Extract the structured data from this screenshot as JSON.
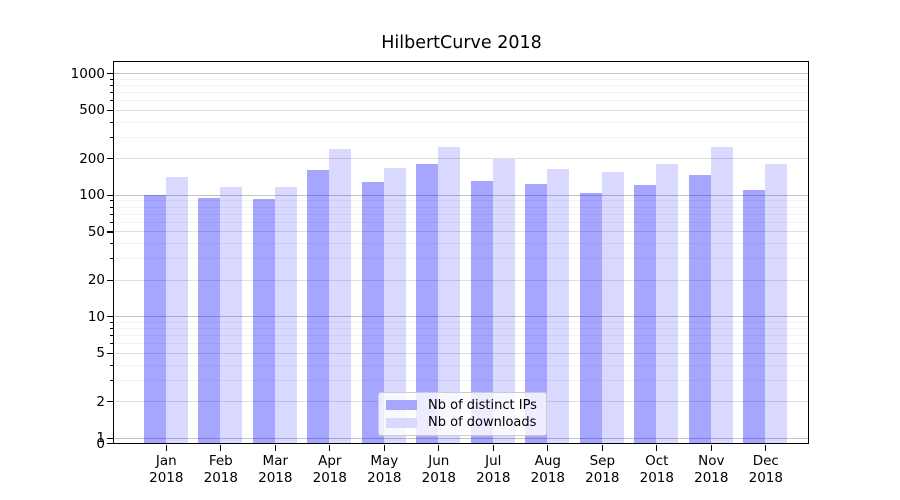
{
  "chart_data": {
    "type": "bar",
    "title": "HilbertCurve 2018",
    "categories": [
      "Jan",
      "Feb",
      "Mar",
      "Apr",
      "May",
      "Jun",
      "Jul",
      "Aug",
      "Sep",
      "Oct",
      "Nov",
      "Dec"
    ],
    "x_year_suffix": "2018",
    "series": [
      {
        "name": "Nb of distinct IPs",
        "color": "#a6a6ff",
        "fill": "rgba(0,0,255,0.35)",
        "values": [
          100,
          95,
          93,
          160,
          127,
          178,
          131,
          123,
          104,
          121,
          147,
          109
        ]
      },
      {
        "name": "Nb of downloads",
        "color": "#d9d9ff",
        "fill": "rgba(0,0,255,0.15)",
        "values": [
          141,
          115,
          117,
          240,
          167,
          250,
          199,
          164,
          154,
          180,
          246,
          178
        ]
      }
    ],
    "yaxis": {
      "scale": "symlog",
      "ticks_labeled": [
        0,
        1,
        2,
        5,
        10,
        20,
        50,
        100,
        200,
        500,
        1000
      ],
      "ticks_major": [
        1,
        10,
        100,
        1000
      ],
      "ticks_minor_labeled": [
        2,
        5,
        20,
        50,
        200,
        500
      ],
      "ticks_minor_unlabeled": [
        3,
        4,
        6,
        7,
        8,
        9,
        30,
        40,
        60,
        70,
        80,
        90,
        300,
        400,
        600,
        700,
        800,
        900
      ],
      "range": [
        0,
        1240
      ]
    },
    "legend": {
      "labels": [
        "Nb of distinct IPs",
        "Nb of downloads"
      ],
      "position": "bottom-center"
    },
    "grid": "horizontal on",
    "gridline_colors": {
      "major": "#c4c4c4",
      "minor_labeled": "#e0e0e0",
      "minor_unlabeled": "#f2f2f2"
    }
  }
}
